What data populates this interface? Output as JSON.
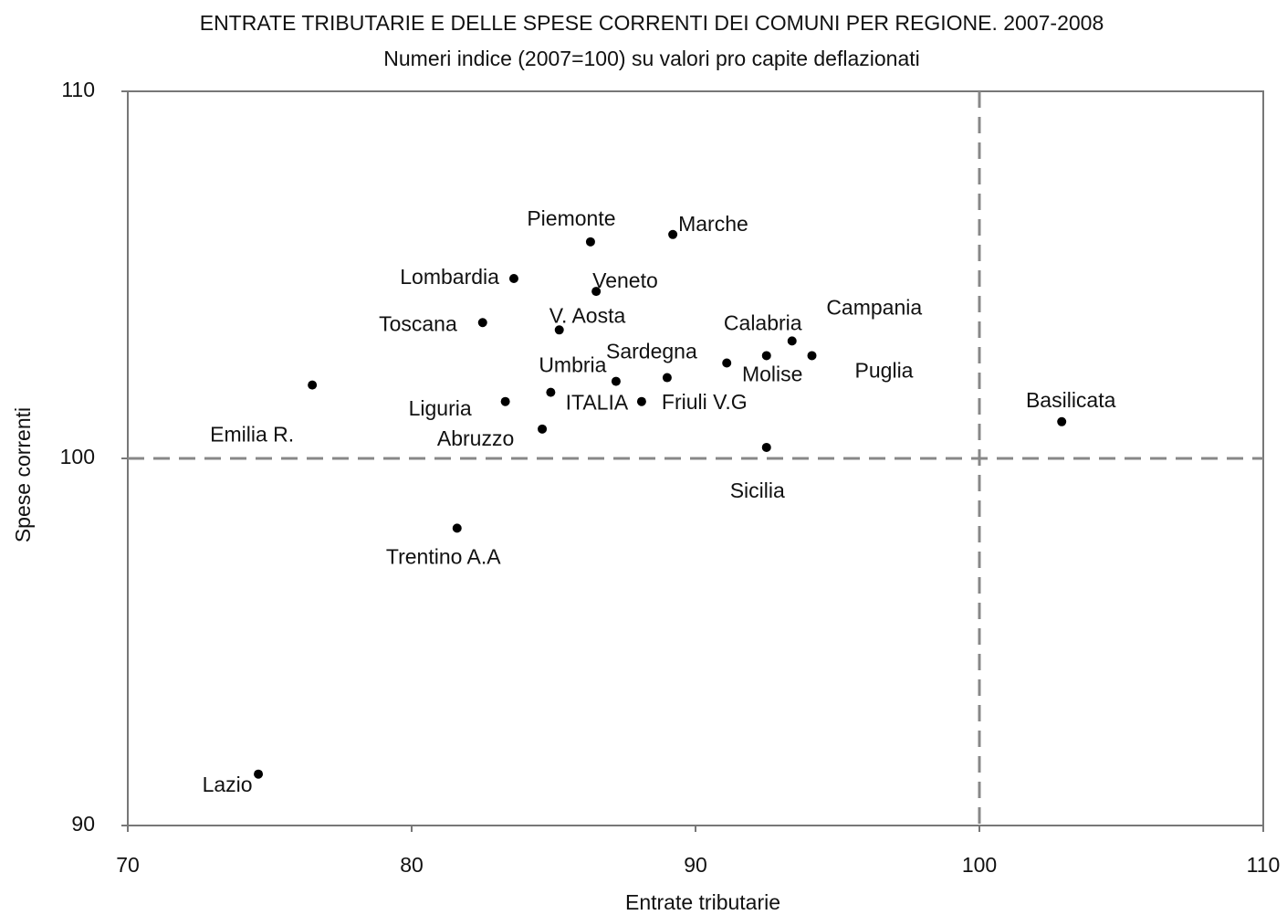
{
  "chart_data": {
    "type": "scatter",
    "title": "ENTRATE TRIBUTARIE E DELLE SPESE CORRENTI DEI COMUNI PER REGIONE. 2007-2008",
    "subtitle": "Numeri indice (2007=100) su valori pro capite deflazionati",
    "xlabel": "Entrate tributarie",
    "ylabel": "Spese correnti",
    "labels": [
      "Piemonte",
      "Marche",
      "Lombardia",
      "Veneto",
      "Toscana",
      "V. Aosta",
      "Calabria",
      "Campania",
      "Puglia",
      "Molise",
      "Sardegna",
      "Umbria",
      "ITALIA",
      "Friuli V.G",
      "Liguria",
      "Emilia R.",
      "Abruzzo",
      "Sicilia",
      "Basilicata",
      "Trentino A.A",
      "Lazio"
    ],
    "x": [
      86.3,
      89.2,
      83.6,
      86.5,
      82.5,
      85.2,
      92.5,
      93.4,
      94.1,
      91.1,
      89.0,
      84.9,
      87.2,
      88.1,
      83.3,
      76.5,
      84.6,
      92.5,
      102.9,
      81.6,
      74.6
    ],
    "values": [
      105.9,
      106.1,
      104.9,
      104.55,
      103.7,
      103.5,
      102.8,
      103.2,
      102.8,
      102.6,
      102.2,
      101.8,
      102.1,
      101.55,
      101.55,
      102.0,
      100.8,
      100.3,
      101.0,
      98.1,
      91.4
    ],
    "color": "#000000",
    "xlim": [
      70,
      110
    ],
    "xticks": [
      70,
      80,
      90,
      100,
      110
    ],
    "ylim": [
      90,
      110
    ],
    "yticks": [
      90,
      100,
      110
    ],
    "reference_lines": {
      "x": 100,
      "y": 100
    }
  }
}
